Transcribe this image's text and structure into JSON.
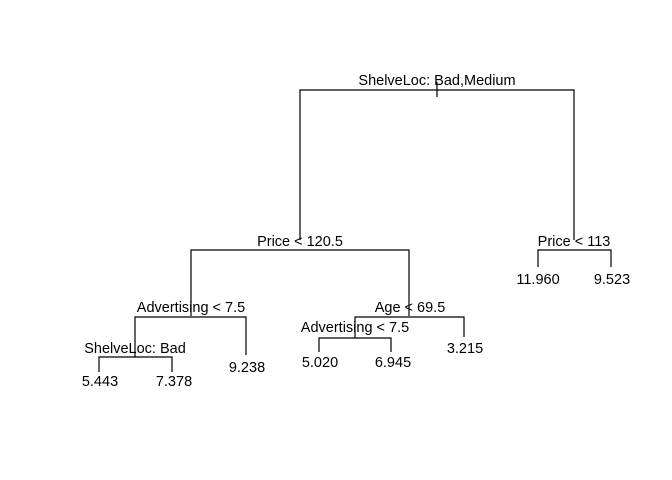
{
  "tree": {
    "nodes": {
      "root": {
        "text": "ShelveLoc: Bad,Medium"
      },
      "n2": {
        "text": "Price < 120.5"
      },
      "n3": {
        "text": "Price < 113"
      },
      "n4": {
        "text": "Advertising < 7.5"
      },
      "n5": {
        "text": "Age < 69.5"
      },
      "n8": {
        "text": "ShelveLoc: Bad"
      },
      "n10": {
        "text": "Advertising < 7.5"
      }
    },
    "leaves": {
      "l16": {
        "text": "5.443"
      },
      "l17": {
        "text": "7.378"
      },
      "l9": {
        "text": "9.238"
      },
      "l20": {
        "text": "5.020"
      },
      "l21": {
        "text": "6.945"
      },
      "l11": {
        "text": "3.215"
      },
      "l6": {
        "text": "11.960"
      },
      "l7": {
        "text": "9.523"
      }
    }
  }
}
